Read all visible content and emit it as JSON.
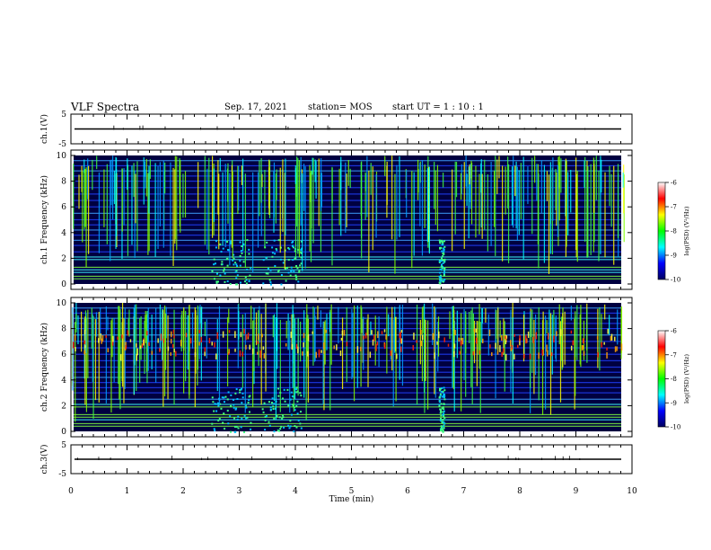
{
  "header": {
    "title": "VLF Spectra",
    "date": "Sep. 17, 2021",
    "station": "station= MOS",
    "start": "start  UT =   1 : 10 : 1"
  },
  "chart_data": {
    "type": "heatmap",
    "xlabel": "Time  (min)",
    "xlim": [
      0,
      10
    ],
    "xticks": [
      "0",
      "1",
      "2",
      "3",
      "4",
      "5",
      "6",
      "7",
      "8",
      "9",
      "10"
    ],
    "panels": [
      {
        "id": "ch1-waveform",
        "ylabel": "ch.1(V)",
        "ylim": [
          -5,
          5
        ],
        "yticks": [
          "5",
          "-5"
        ]
      },
      {
        "id": "ch1-spectrogram",
        "ylabel": "ch.1  Frequency  (kHz)",
        "ylim": [
          0,
          10
        ],
        "yticks": [
          "0",
          "2",
          "4",
          "6",
          "8",
          "10"
        ]
      },
      {
        "id": "ch2-spectrogram",
        "ylabel": "ch.2  Frequency  (kHz)",
        "ylim": [
          0,
          10
        ],
        "yticks": [
          "0",
          "2",
          "4",
          "6",
          "8",
          "10"
        ]
      },
      {
        "id": "ch3-waveform",
        "ylabel": "ch.3(V)",
        "ylim": [
          -5,
          5
        ],
        "yticks": [
          "5",
          "-5"
        ]
      }
    ],
    "colorbar": {
      "label": "log(PSD) (V²/Hz)",
      "range": [
        -10,
        -6
      ],
      "ticks": [
        "-6",
        "-7",
        "-8",
        "-9",
        "-10"
      ],
      "colormap": [
        "#000060",
        "#0000ff",
        "#00ffff",
        "#00ff00",
        "#ffff00",
        "#ff0000",
        "#ffffff"
      ]
    }
  }
}
